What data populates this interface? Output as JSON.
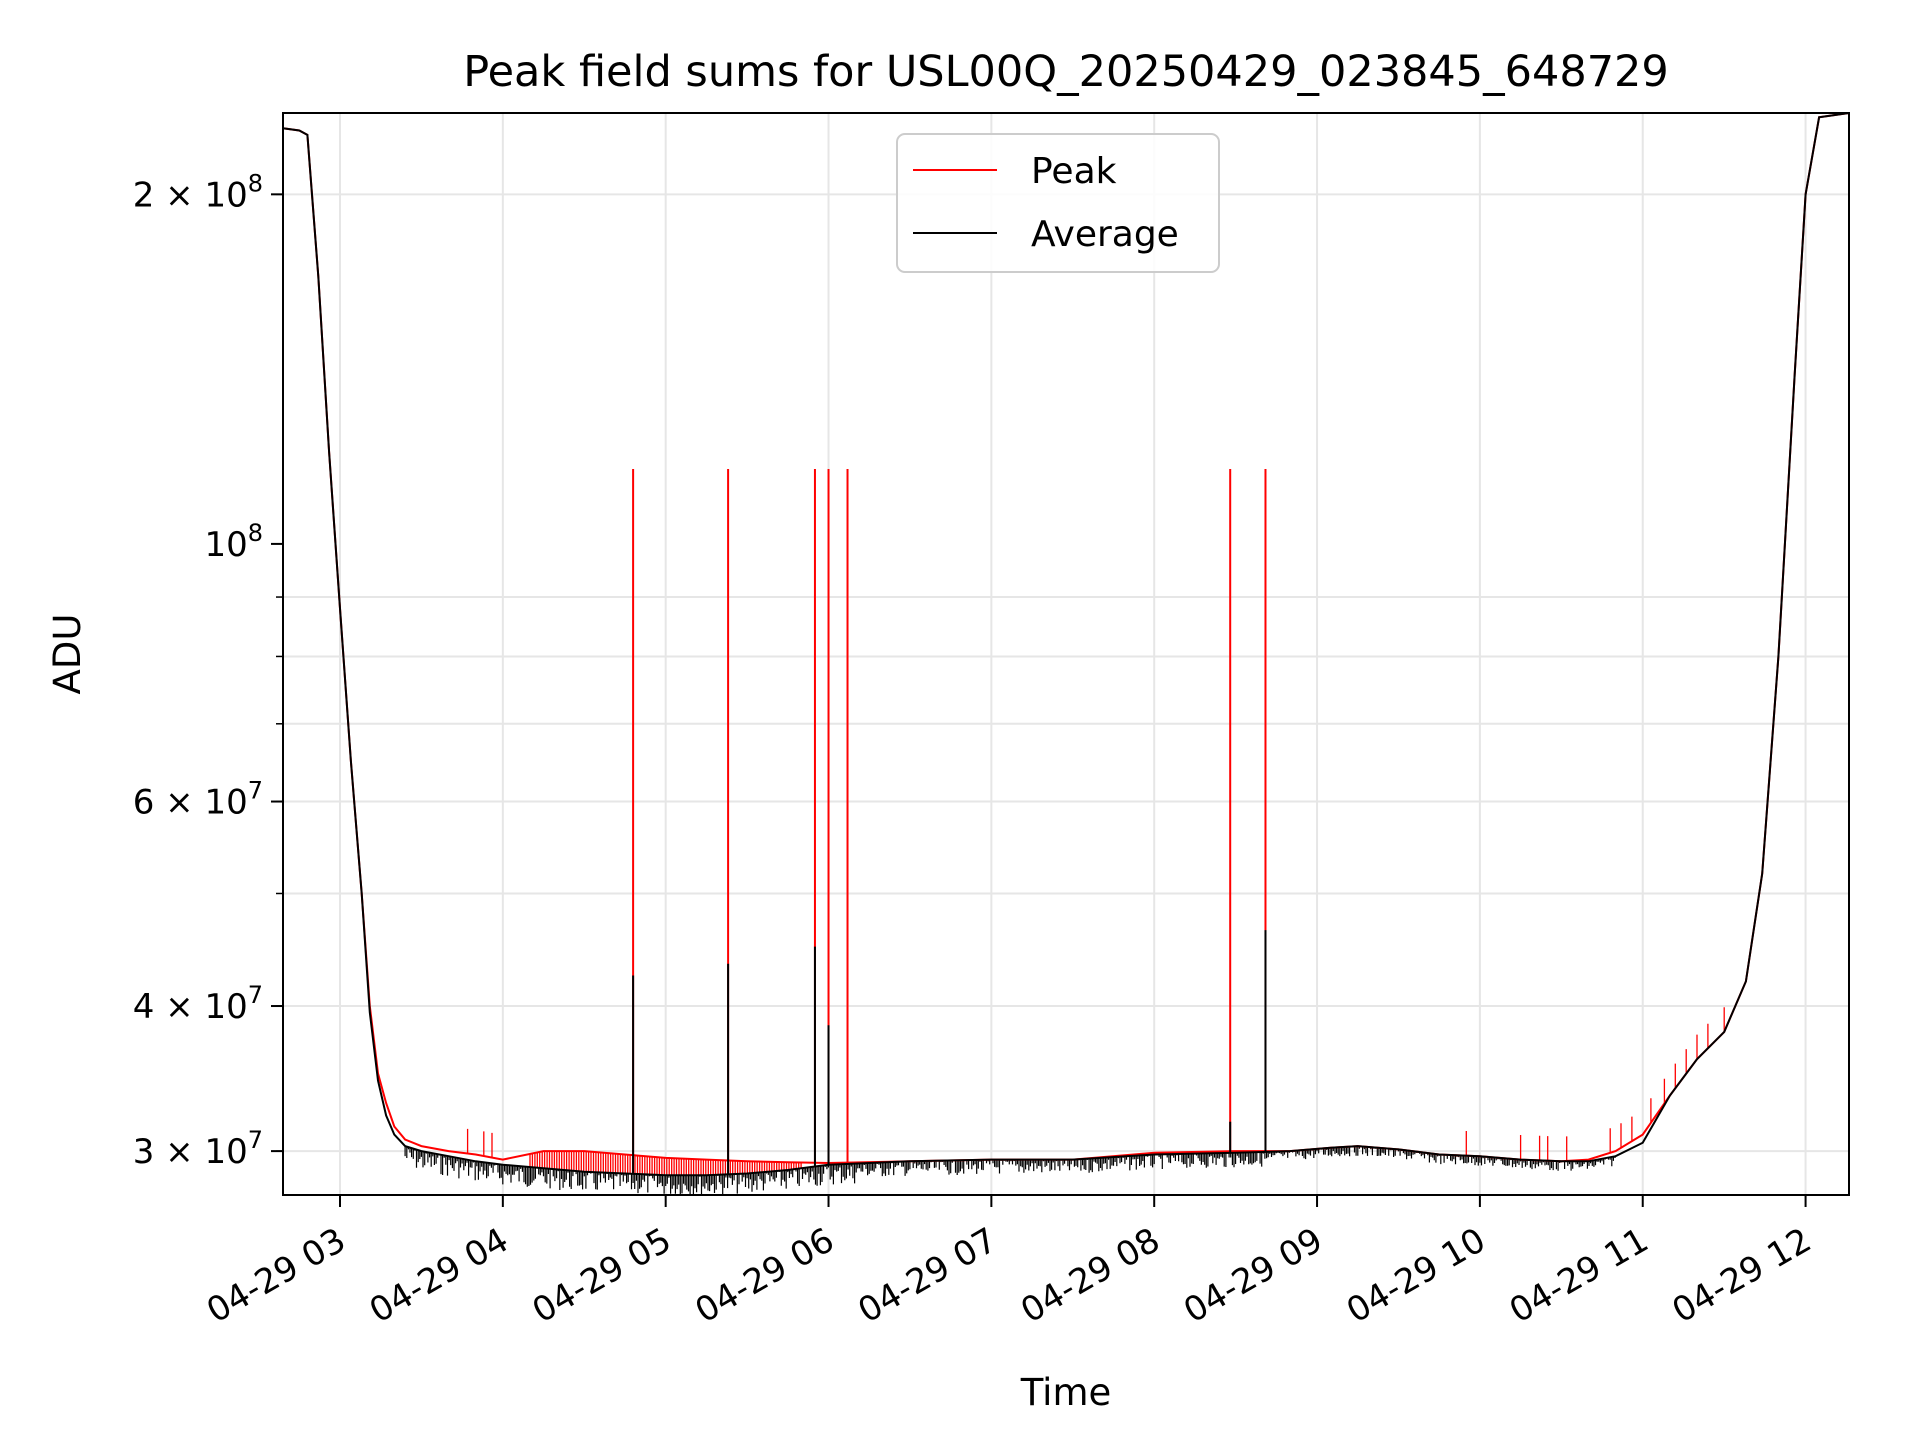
{
  "chart_data": {
    "type": "line",
    "title": "Peak field sums for USL00Q_20250429_023845_648729",
    "xlabel": "Time",
    "ylabel": "ADU",
    "yscale": "log",
    "xlim": [
      "2025-04-29 02:39",
      "2025-04-29 12:16"
    ],
    "ylim": [
      27500000,
      235000000
    ],
    "grid": true,
    "legend": "upper center",
    "x_ticks": [
      "04-29 03",
      "04-29 04",
      "04-29 05",
      "04-29 06",
      "04-29 07",
      "04-29 08",
      "04-29 09",
      "04-29 10",
      "04-29 11",
      "04-29 12"
    ],
    "y_ticks": [
      {
        "value": 30000000,
        "base": "3",
        "mult": " × 10",
        "exp": "7"
      },
      {
        "value": 40000000,
        "base": "4",
        "mult": " × 10",
        "exp": "7"
      },
      {
        "value": 60000000,
        "base": "6",
        "mult": " × 10",
        "exp": "7"
      },
      {
        "value": 100000000,
        "base": "",
        "mult": "10",
        "exp": "8"
      },
      {
        "value": 200000000,
        "base": "2",
        "mult": " × 10",
        "exp": "8"
      }
    ],
    "series": [
      {
        "name": "Peak",
        "color": "#ff0000",
        "x": [
          "02:39",
          "02:45",
          "02:48",
          "02:52",
          "02:56",
          "03:00",
          "03:04",
          "03:08",
          "03:11",
          "03:14",
          "03:17",
          "03:20",
          "03:24",
          "03:30",
          "03:40",
          "03:50",
          "04:00",
          "04:15",
          "04:30",
          "04:45",
          "05:00",
          "05:15",
          "05:30",
          "05:45",
          "06:00",
          "06:30",
          "07:00",
          "07:30",
          "08:00",
          "08:30",
          "08:50",
          "09:05",
          "09:15",
          "09:30",
          "09:45",
          "10:00",
          "10:15",
          "10:30",
          "10:40",
          "10:50",
          "11:00",
          "11:10",
          "11:20",
          "11:30",
          "11:38",
          "11:44",
          "11:50",
          "11:56",
          "12:00",
          "12:05",
          "12:16"
        ],
        "values": [
          228000000,
          227000000,
          225000000,
          170000000,
          120000000,
          88000000,
          65000000,
          50000000,
          40000000,
          35000000,
          33000000,
          31500000,
          30700000,
          30300000,
          30000000,
          29800000,
          29500000,
          30000000,
          30000000,
          29800000,
          29600000,
          29500000,
          29400000,
          29350000,
          29300000,
          29400000,
          29500000,
          29500000,
          29900000,
          30000000,
          30000000,
          30200000,
          30300000,
          30100000,
          29800000,
          29700000,
          29500000,
          29400000,
          29500000,
          30000000,
          31000000,
          33500000,
          36000000,
          38000000,
          42000000,
          52000000,
          80000000,
          140000000,
          200000000,
          233000000,
          235000000
        ],
        "spikes": [
          {
            "x": "04:48",
            "value": 116000000
          },
          {
            "x": "05:23",
            "value": 116000000
          },
          {
            "x": "05:55",
            "value": 116000000
          },
          {
            "x": "06:00",
            "value": 116000000
          },
          {
            "x": "06:07",
            "value": 116000000
          },
          {
            "x": "08:28",
            "value": 116000000
          },
          {
            "x": "08:41",
            "value": 116000000
          }
        ]
      },
      {
        "name": "Average",
        "color": "#000000",
        "x": [
          "02:39",
          "02:45",
          "02:48",
          "02:52",
          "02:56",
          "03:00",
          "03:04",
          "03:08",
          "03:11",
          "03:14",
          "03:17",
          "03:20",
          "03:24",
          "03:30",
          "03:40",
          "03:50",
          "04:00",
          "04:15",
          "04:30",
          "04:45",
          "05:00",
          "05:15",
          "05:30",
          "05:45",
          "06:00",
          "06:30",
          "07:00",
          "07:30",
          "08:00",
          "08:30",
          "08:50",
          "09:05",
          "09:15",
          "09:30",
          "09:45",
          "10:00",
          "10:15",
          "10:30",
          "10:40",
          "10:50",
          "11:00",
          "11:10",
          "11:20",
          "11:30",
          "11:38",
          "11:44",
          "11:50",
          "11:56",
          "12:00",
          "12:05",
          "12:16"
        ],
        "values": [
          228000000,
          227000000,
          225000000,
          170000000,
          120000000,
          88000000,
          65000000,
          50000000,
          39500000,
          34500000,
          32200000,
          31000000,
          30300000,
          30000000,
          29700000,
          29400000,
          29200000,
          29000000,
          28800000,
          28700000,
          28600000,
          28600000,
          28700000,
          28900000,
          29200000,
          29400000,
          29500000,
          29500000,
          29800000,
          29900000,
          30000000,
          30200000,
          30300000,
          30100000,
          29800000,
          29700000,
          29500000,
          29400000,
          29400000,
          29700000,
          30500000,
          33500000,
          36000000,
          38000000,
          42000000,
          52000000,
          80000000,
          140000000,
          200000000,
          233000000,
          235000000
        ],
        "spikes": [
          {
            "x": "04:48",
            "value": 42500000
          },
          {
            "x": "05:23",
            "value": 43500000
          },
          {
            "x": "05:55",
            "value": 45000000
          },
          {
            "x": "06:00",
            "value": 38500000
          },
          {
            "x": "08:28",
            "value": 31800000
          },
          {
            "x": "08:41",
            "value": 46500000
          }
        ]
      }
    ],
    "legend_entries": [
      "Peak",
      "Average"
    ]
  }
}
